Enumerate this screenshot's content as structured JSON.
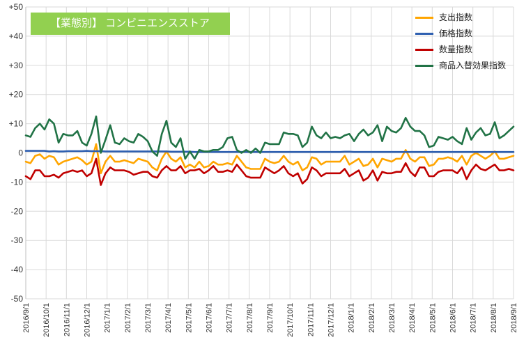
{
  "chart_data": {
    "type": "line",
    "title": "【業態別】 コンビニエンスストア",
    "y_axis": {
      "min": -50,
      "max": 50,
      "step": 10,
      "tick_labels": [
        "-50",
        "-40",
        "-30",
        "-20",
        "-10",
        "0",
        "+10",
        "+20",
        "+30",
        "+40",
        "+50"
      ]
    },
    "x_axis": {
      "tick_labels": [
        "2016/9/1",
        "2016/10/1",
        "2016/11/1",
        "2016/12/1",
        "2017/1/1",
        "2017/2/1",
        "2017/3/1",
        "2017/4/1",
        "2017/5/1",
        "2017/6/1",
        "2017/7/1",
        "2017/8/1",
        "2017/9/1",
        "2017/10/1",
        "2017/11/1",
        "2017/12/1",
        "2018/1/1",
        "2018/2/1",
        "2018/3/1",
        "2018/4/1",
        "2018/5/1",
        "2018/6/1",
        "2018/7/1",
        "2018/8/1",
        "2018/9/1"
      ],
      "note": "weekly data points"
    },
    "grid": true,
    "legend_position": "top-right",
    "series": [
      {
        "name": "支出指数",
        "color": "#ffa500",
        "values": [
          -3,
          -3.5,
          -1,
          -0.5,
          -2,
          -1,
          -1.5,
          -4,
          -3,
          -2.5,
          -2,
          -1.5,
          -2.5,
          -4,
          -3,
          3,
          -7,
          -3,
          -1,
          -3,
          -3,
          -2.5,
          -3,
          -3.5,
          -2,
          -2.5,
          -3,
          -5,
          -6,
          -2,
          0.5,
          -2,
          -3,
          -1.5,
          -5,
          -4,
          -5,
          -3,
          -5,
          -4.5,
          -3,
          -4,
          -4,
          -3.5,
          -4,
          -1,
          -3,
          -5,
          -5.5,
          -5.5,
          -5.5,
          -2,
          -3,
          -3.5,
          -3,
          -1,
          -3,
          -4,
          -3,
          -6,
          -5,
          -1.5,
          -2,
          -4,
          -3,
          -3,
          -3,
          -3,
          -1,
          -4,
          -3,
          -2,
          -4.5,
          -4,
          -2,
          -5,
          -2,
          -2.5,
          -3,
          -2,
          -2,
          1,
          -2,
          -3,
          -1.5,
          -1.5,
          -4.5,
          -4,
          -2,
          -2,
          -1.5,
          -2,
          -3,
          -1,
          -4,
          -1,
          0,
          -1,
          -2,
          -1,
          0.5,
          -2,
          -2,
          -1.5,
          -1
        ]
      },
      {
        "name": "価格指数",
        "color": "#2e5fb0",
        "values": [
          0.7,
          0.7,
          0.7,
          0.7,
          0.7,
          0.5,
          0.6,
          0.5,
          0.5,
          0.6,
          0.6,
          0.6,
          0.6,
          0.7,
          0.6,
          0.6,
          0.6,
          0.5,
          0.5,
          0.5,
          0.5,
          0.5,
          0.5,
          0.5,
          0.5,
          0.5,
          0.5,
          0.5,
          0.5,
          0.5,
          0.5,
          0.4,
          0.4,
          0.4,
          0.4,
          0.4,
          0.3,
          0.3,
          0.3,
          0.3,
          0.3,
          0.3,
          0.3,
          0.3,
          0.3,
          0.3,
          0.3,
          0.3,
          0.3,
          0.3,
          0.3,
          0.3,
          0.3,
          0.3,
          0.3,
          0.3,
          0.3,
          0.3,
          0.3,
          0.3,
          0.3,
          0.3,
          0.3,
          0.3,
          0.3,
          0.3,
          0.3,
          0.3,
          0.4,
          0.4,
          0.3,
          0.3,
          0.3,
          0.3,
          0.3,
          0.3,
          0.3,
          0.3,
          0.3,
          0.3,
          0.3,
          0.3,
          0.3,
          0.3,
          0.3,
          0.3,
          0.3,
          0.3,
          0.3,
          0.3,
          0.3,
          0.3,
          0.3,
          0.3,
          0.3,
          0.3,
          0.3,
          0.3,
          0.3,
          0.3,
          0.3,
          0.3,
          0.3,
          0.3,
          0.3
        ]
      },
      {
        "name": "数量指数",
        "color": "#c00000",
        "values": [
          -8,
          -9,
          -6,
          -6,
          -8,
          -8,
          -7.5,
          -8.5,
          -7,
          -6.5,
          -6,
          -6.5,
          -6,
          -8,
          -7,
          -2,
          -11,
          -7,
          -5,
          -6,
          -6,
          -6,
          -6.5,
          -7.5,
          -7,
          -6.5,
          -6.5,
          -8,
          -8.5,
          -6,
          -4.5,
          -6,
          -6,
          -4.5,
          -7,
          -6,
          -6,
          -5.5,
          -7,
          -6,
          -4.5,
          -6.5,
          -6.5,
          -6,
          -6.5,
          -4,
          -6,
          -8,
          -8.5,
          -8.5,
          -8.5,
          -5,
          -6,
          -7,
          -6,
          -4.5,
          -7,
          -8,
          -7,
          -10.5,
          -9,
          -5,
          -6,
          -8,
          -7,
          -7,
          -7,
          -7,
          -5.5,
          -8,
          -7,
          -6,
          -9.5,
          -8.5,
          -6,
          -9.5,
          -6.5,
          -7,
          -7,
          -6.5,
          -6.5,
          -3.5,
          -6.5,
          -8,
          -5,
          -5,
          -8,
          -8,
          -6.5,
          -6,
          -6,
          -6,
          -7,
          -5,
          -9,
          -6,
          -4,
          -5.5,
          -6,
          -5,
          -4,
          -6,
          -6,
          -5.5,
          -6
        ]
      },
      {
        "name": "商品入替効果指数",
        "color": "#217346",
        "values": [
          6,
          5.5,
          8.5,
          10,
          8,
          11.5,
          10,
          3.5,
          6.5,
          6,
          6,
          7.5,
          3.5,
          2.5,
          6.5,
          12.5,
          0,
          4.5,
          9.5,
          3.5,
          3,
          5,
          4,
          3.5,
          6.5,
          5.5,
          4,
          0.5,
          -1,
          6.5,
          11,
          3.5,
          2,
          5,
          -2,
          0.5,
          -2,
          1,
          0.5,
          0.5,
          1,
          1,
          2,
          5,
          5.5,
          1,
          0,
          1,
          0,
          1.5,
          0,
          3.5,
          3,
          3,
          3,
          7,
          6.5,
          6.5,
          6,
          2,
          3.5,
          9,
          6,
          5,
          7,
          5,
          5.5,
          5,
          6,
          6.5,
          4,
          6.5,
          8,
          6,
          7,
          9.5,
          4,
          9,
          7.5,
          7,
          8.5,
          12,
          9,
          7.5,
          7.5,
          6,
          2,
          2.5,
          5.5,
          5,
          4.5,
          5.5,
          4,
          3,
          8.5,
          4.5,
          7,
          8.5,
          6,
          6.5,
          10.5,
          5,
          6,
          7.5,
          9
        ]
      }
    ]
  }
}
